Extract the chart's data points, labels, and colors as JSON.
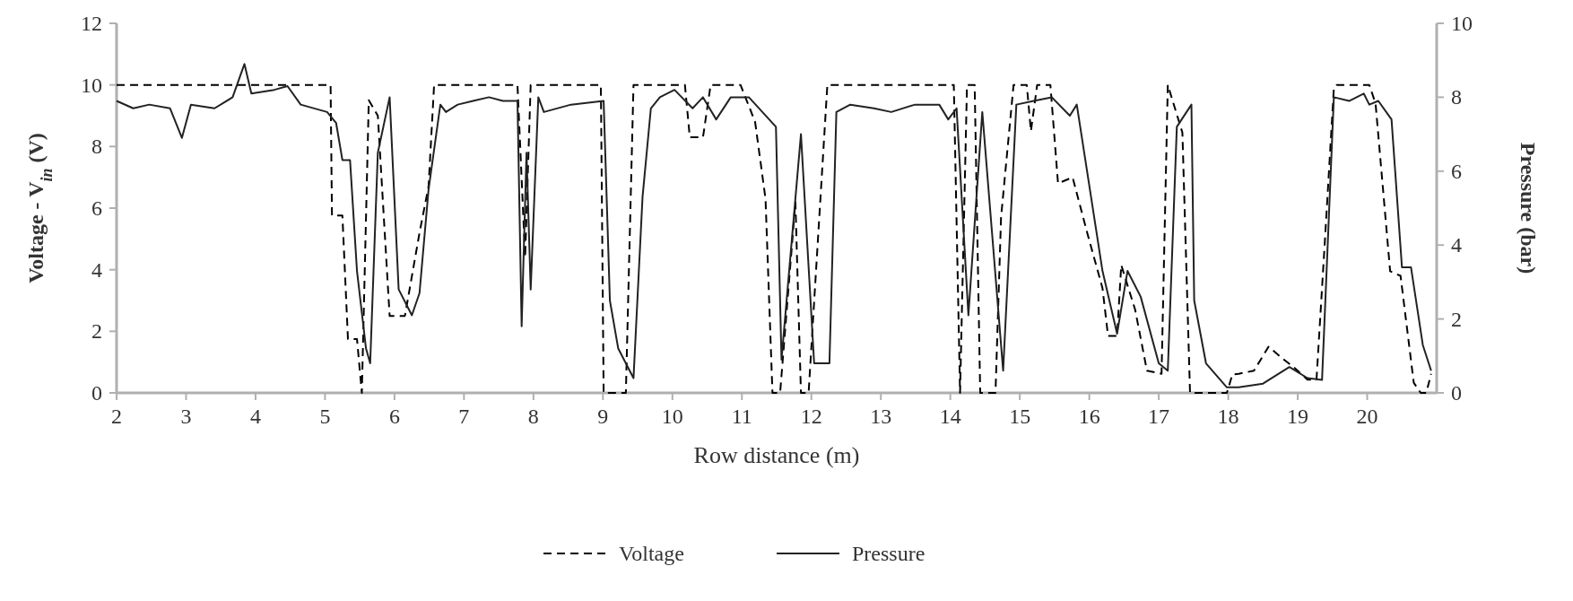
{
  "chart_data": {
    "type": "line",
    "xlabel": "Row distance (m)",
    "ylabel": "Voltage - V$_{in}$ (V)",
    "y2label": "Pressure (bar)",
    "xlim": [
      2,
      21
    ],
    "xticks": [
      2,
      3,
      4,
      5,
      6,
      7,
      8,
      9,
      10,
      11,
      12,
      13,
      14,
      15,
      16,
      17,
      18,
      19,
      20
    ],
    "ylim": [
      0,
      12
    ],
    "yticks": [
      0,
      2,
      4,
      6,
      8,
      10,
      12
    ],
    "y2lim": [
      0,
      10
    ],
    "y2ticks": [
      0,
      2,
      4,
      6,
      8,
      10
    ],
    "grid": false,
    "legend": "bottom",
    "series": [
      {
        "name": "Voltage",
        "color": "#000000",
        "line_style": "dashed",
        "x": [
          2,
          5.08,
          5.1,
          5.25,
          5.33,
          5.46,
          5.53,
          5.63,
          5.76,
          5.93,
          6.15,
          6.36,
          6.49,
          6.57,
          7.77,
          7.88,
          7.96,
          8.97,
          9.01,
          9.33,
          9.44,
          10.18,
          10.25,
          10.44,
          10.55,
          10.98,
          11.19,
          11.34,
          11.44,
          11.55,
          11.77,
          11.85,
          11.96,
          12.23,
          14.05,
          14.14,
          14.24,
          14.35,
          14.43,
          14.65,
          14.73,
          14.91,
          15.1,
          15.16,
          15.25,
          15.44,
          15.55,
          15.76,
          15.97,
          16.19,
          16.27,
          16.4,
          16.46,
          16.66,
          16.83,
          17.04,
          17.13,
          17.34,
          17.45,
          17.98,
          18.06,
          18.15,
          18.37,
          18.58,
          18.79,
          18.96,
          19.14,
          19.27,
          19.39,
          19.52,
          19.56,
          20.03,
          20.12,
          20.33,
          20.48,
          20.67,
          20.77,
          20.85,
          20.92
        ],
        "values": [
          10,
          10,
          5.76,
          5.76,
          1.75,
          1.75,
          0,
          9.5,
          9,
          2.5,
          2.5,
          5.2,
          6.7,
          10,
          10,
          4.4,
          10,
          10,
          0,
          0,
          10,
          10,
          8.3,
          8.3,
          10,
          10,
          8.8,
          6.3,
          0,
          0,
          6.2,
          0,
          0,
          10,
          10,
          0,
          10,
          10,
          0,
          0,
          5.7,
          10,
          10,
          8.5,
          10,
          10,
          6.8,
          7,
          5.2,
          3.4,
          1.85,
          1.85,
          4.15,
          2.7,
          0.72,
          0.62,
          10,
          8.45,
          0,
          0,
          0.6,
          0.62,
          0.72,
          1.5,
          1.1,
          0.8,
          0.43,
          0.43,
          4.9,
          9.9,
          10,
          10,
          9.4,
          3.95,
          3.8,
          0.33,
          0,
          0,
          0.62
        ]
      },
      {
        "name": "Pressure",
        "color": "#222222",
        "line_style": "solid",
        "axis": "y2",
        "x": [
          2,
          2.24,
          2.47,
          2.77,
          2.94,
          3.07,
          3.41,
          3.67,
          3.84,
          3.94,
          4.27,
          4.46,
          4.65,
          5.03,
          5.16,
          5.25,
          5.36,
          5.46,
          5.59,
          5.65,
          5.76,
          5.93,
          6.06,
          6.25,
          6.36,
          6.49,
          6.66,
          6.74,
          6.91,
          7.13,
          7.36,
          7.56,
          7.77,
          7.83,
          7.9,
          7.96,
          8.07,
          8.15,
          8.54,
          9.01,
          9.1,
          9.22,
          9.44,
          9.57,
          9.69,
          9.82,
          10.03,
          10.29,
          10.44,
          10.63,
          10.84,
          11.1,
          11.49,
          11.57,
          11.85,
          12.04,
          12.26,
          12.36,
          12.56,
          12.9,
          13.15,
          13.49,
          13.84,
          13.97,
          14.09,
          14.26,
          14.46,
          14.76,
          14.95,
          15.2,
          15.46,
          15.72,
          15.82,
          16.19,
          16.4,
          16.55,
          16.74,
          17,
          17.13,
          17.26,
          17.47,
          17.51,
          17.68,
          17.98,
          18.15,
          18.5,
          18.88,
          19.14,
          19.35,
          19.52,
          19.74,
          19.95,
          20.03,
          20.16,
          20.35,
          20.5,
          20.63,
          20.8,
          20.92
        ],
        "values": [
          7.9,
          7.7,
          7.8,
          7.7,
          6.9,
          7.8,
          7.7,
          8,
          8.9,
          8.1,
          8.2,
          8.3,
          7.8,
          7.6,
          7.3,
          6.3,
          6.3,
          3.3,
          1.2,
          0.8,
          6.5,
          8,
          2.8,
          2.1,
          2.7,
          5.5,
          7.8,
          7.6,
          7.8,
          7.9,
          8,
          7.9,
          7.9,
          1.8,
          6.5,
          2.8,
          8,
          7.6,
          7.8,
          7.9,
          2.5,
          1.2,
          0.4,
          5.3,
          7.7,
          8,
          8.2,
          7.7,
          8,
          7.4,
          8,
          8,
          7.2,
          0.9,
          7,
          0.8,
          0.8,
          7.6,
          7.8,
          7.7,
          7.6,
          7.8,
          7.8,
          7.4,
          7.7,
          2.1,
          7.6,
          0.6,
          7.8,
          7.9,
          8,
          7.5,
          7.8,
          3.3,
          1.6,
          3.3,
          2.6,
          0.8,
          0.6,
          7.2,
          7.8,
          2.5,
          0.8,
          0.15,
          0.15,
          0.25,
          0.7,
          0.4,
          0.35,
          8,
          7.9,
          8.1,
          7.8,
          7.9,
          7.4,
          3.4,
          3.4,
          1.3,
          0.6
        ]
      }
    ]
  }
}
